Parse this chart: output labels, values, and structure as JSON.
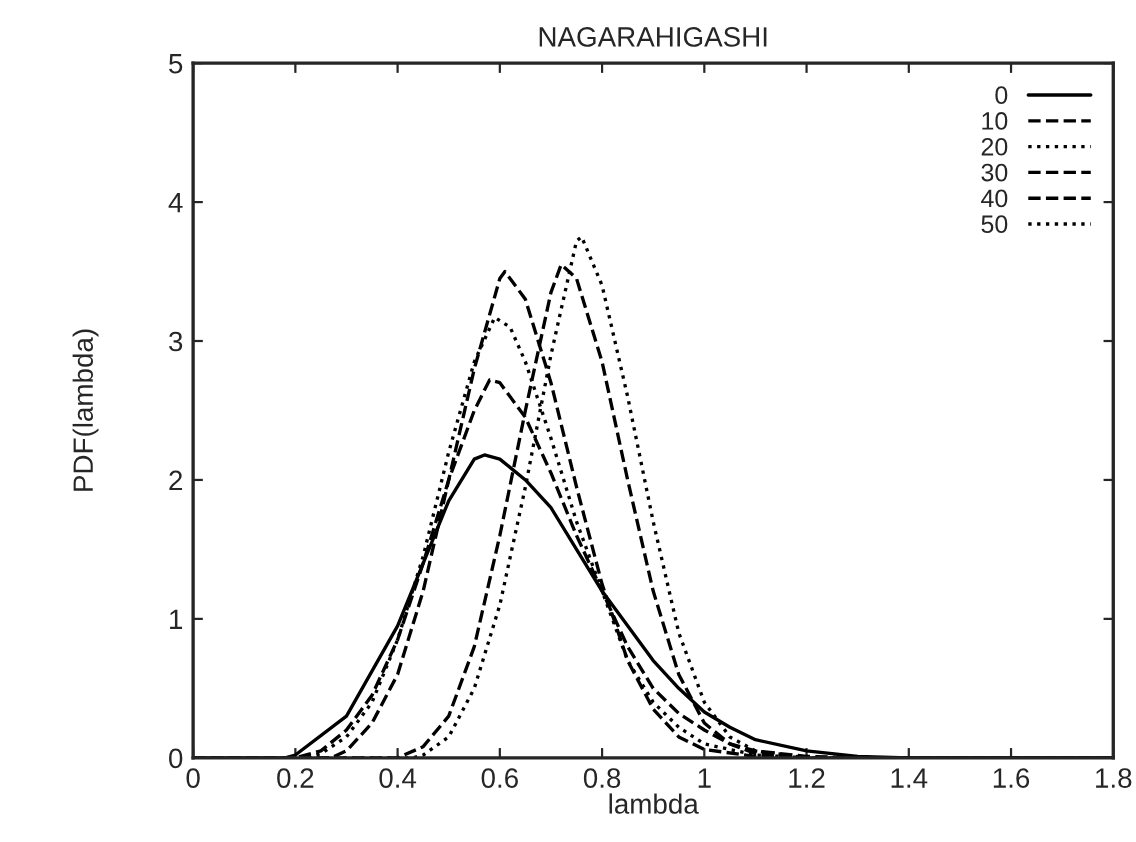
{
  "chart_data": {
    "type": "line",
    "title": "NAGARAHIGASHI",
    "xlabel": "lambda",
    "ylabel": "PDF(lambda)",
    "xlim": [
      0,
      1.8
    ],
    "ylim": [
      0,
      5
    ],
    "xticks": [
      0,
      0.2,
      0.4,
      0.6,
      0.8,
      1,
      1.2,
      1.4,
      1.6,
      1.8
    ],
    "yticks": [
      0,
      1,
      2,
      3,
      4,
      5
    ],
    "grid": false,
    "legend": "top right",
    "marker": "none",
    "series": [
      {
        "name": "0",
        "color": "#000000",
        "line_style": "solid",
        "x": [
          0,
          0.18,
          0.2,
          0.3,
          0.4,
          0.45,
          0.5,
          0.55,
          0.57,
          0.6,
          0.65,
          0.7,
          0.75,
          0.8,
          0.85,
          0.9,
          0.95,
          1.0,
          1.05,
          1.1,
          1.2,
          1.3,
          1.4,
          1.8
        ],
        "values": [
          0,
          0,
          0.02,
          0.3,
          0.95,
          1.4,
          1.85,
          2.15,
          2.18,
          2.15,
          2.0,
          1.8,
          1.5,
          1.2,
          0.95,
          0.7,
          0.5,
          0.33,
          0.22,
          0.13,
          0.05,
          0.01,
          0,
          0
        ]
      },
      {
        "name": "10",
        "color": "#000000",
        "line_style": "dashed",
        "x": [
          0,
          0.2,
          0.25,
          0.3,
          0.35,
          0.4,
          0.45,
          0.5,
          0.55,
          0.58,
          0.6,
          0.65,
          0.7,
          0.75,
          0.8,
          0.85,
          0.9,
          0.95,
          1.0,
          1.05,
          1.1,
          1.2,
          1.3,
          1.8
        ],
        "values": [
          0,
          0,
          0.05,
          0.2,
          0.45,
          0.85,
          1.4,
          2.0,
          2.5,
          2.72,
          2.7,
          2.45,
          2.05,
          1.6,
          1.2,
          0.8,
          0.5,
          0.32,
          0.2,
          0.1,
          0.05,
          0.01,
          0,
          0
        ]
      },
      {
        "name": "20",
        "color": "#000000",
        "line_style": "dotted",
        "x": [
          0,
          0.22,
          0.25,
          0.3,
          0.35,
          0.4,
          0.45,
          0.5,
          0.55,
          0.59,
          0.62,
          0.65,
          0.7,
          0.75,
          0.8,
          0.85,
          0.9,
          0.95,
          1.0,
          1.1,
          1.2,
          1.8
        ],
        "values": [
          0,
          0,
          0.03,
          0.15,
          0.4,
          0.85,
          1.45,
          2.2,
          2.85,
          3.17,
          3.1,
          2.85,
          2.3,
          1.7,
          1.2,
          0.7,
          0.4,
          0.22,
          0.1,
          0.02,
          0,
          0
        ]
      },
      {
        "name": "30",
        "color": "#000000",
        "line_style": "dashed",
        "x": [
          0,
          0.27,
          0.3,
          0.35,
          0.4,
          0.45,
          0.5,
          0.55,
          0.6,
          0.61,
          0.65,
          0.7,
          0.75,
          0.8,
          0.85,
          0.9,
          0.95,
          1.0,
          1.1,
          1.2,
          1.8
        ],
        "values": [
          0,
          0,
          0.05,
          0.25,
          0.6,
          1.2,
          2.0,
          2.8,
          3.45,
          3.5,
          3.3,
          2.7,
          1.95,
          1.25,
          0.7,
          0.35,
          0.15,
          0.06,
          0.01,
          0,
          0
        ]
      },
      {
        "name": "40",
        "color": "#000000",
        "line_style": "dashed",
        "x": [
          0,
          0.4,
          0.45,
          0.5,
          0.55,
          0.6,
          0.65,
          0.7,
          0.72,
          0.75,
          0.8,
          0.85,
          0.9,
          0.95,
          1.0,
          1.05,
          1.1,
          1.2,
          1.8
        ],
        "values": [
          0,
          0,
          0.08,
          0.3,
          0.8,
          1.6,
          2.5,
          3.35,
          3.55,
          3.45,
          2.85,
          2.0,
          1.2,
          0.6,
          0.25,
          0.1,
          0.03,
          0,
          0
        ]
      },
      {
        "name": "50",
        "color": "#000000",
        "line_style": "dotted",
        "x": [
          0,
          0.43,
          0.45,
          0.5,
          0.55,
          0.6,
          0.65,
          0.7,
          0.75,
          0.76,
          0.8,
          0.85,
          0.9,
          0.95,
          1.0,
          1.05,
          1.1,
          1.2,
          1.8
        ],
        "values": [
          0,
          0,
          0.02,
          0.15,
          0.5,
          1.1,
          1.95,
          2.9,
          3.72,
          3.75,
          3.4,
          2.6,
          1.7,
          0.9,
          0.4,
          0.15,
          0.05,
          0,
          0
        ]
      }
    ]
  }
}
